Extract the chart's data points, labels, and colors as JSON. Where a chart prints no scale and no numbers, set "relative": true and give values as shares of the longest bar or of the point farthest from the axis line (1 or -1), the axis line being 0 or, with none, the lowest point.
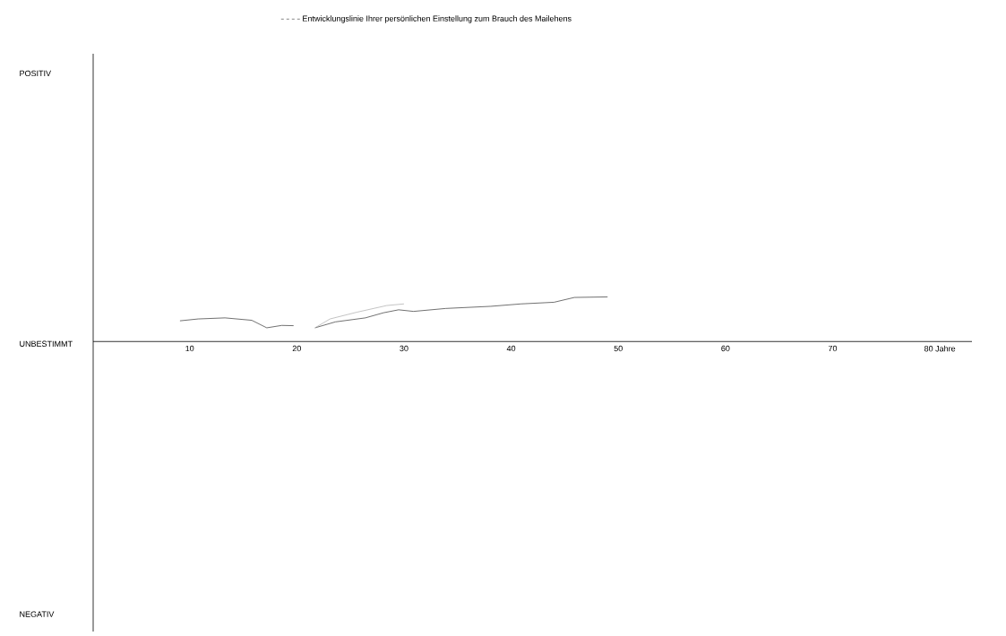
{
  "chart_data": {
    "type": "line",
    "legend": "top",
    "xlim": [
      1,
      83
    ],
    "xticks": [
      10,
      20,
      30,
      40,
      50,
      60,
      70,
      {
        "value": 80,
        "label": "80 Jahre"
      }
    ],
    "relative": true,
    "annotations": [
      "POSITIV",
      "UNBESTIMMT",
      "NEGATIV"
    ],
    "series": [
      {
        "name": "Entwicklungslinie Ihrer persönlichen Einstellung zum Brauch des Mailehens",
        "color": "#333333",
        "x": [
          9.1,
          10.8,
          13.3,
          15.8,
          17.2,
          18.6,
          19.7,
          20.7,
          21.7,
          23.6,
          26.4,
          28.1,
          29.5,
          30.9,
          33.9,
          38.1,
          40.9,
          44.0,
          45.9,
          49.0
        ],
        "values": [
          0.464,
          0.506,
          0.53,
          0.476,
          0.307,
          0.361,
          0.355,
          null,
          0.307,
          0.44,
          0.53,
          0.645,
          0.711,
          0.675,
          0.741,
          0.789,
          0.843,
          0.88,
          0.988,
          1
        ]
      },
      {
        "color": "#aaaaaa",
        "x": [
          21.7,
          23.1,
          25.6,
          28.4,
          30.0
        ],
        "values": [
          0.307,
          0.506,
          0.657,
          0.807,
          0.843
        ]
      }
    ]
  }
}
